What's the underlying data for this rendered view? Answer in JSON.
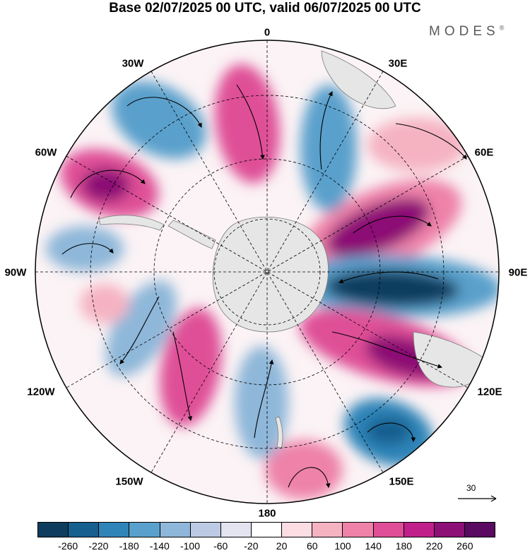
{
  "header": {
    "title": "Base 02/07/2025 00 UTC, valid 06/07/2025 00 UTC",
    "brand": "MODES",
    "brand_mark": "®"
  },
  "map": {
    "projection": "south-polar-stereographic",
    "longitude_labels": {
      "lon_0": "0",
      "lon_30e": "30E",
      "lon_60e": "60E",
      "lon_90e": "90E",
      "lon_120e": "120E",
      "lon_150e": "150E",
      "lon_180": "180",
      "lon_150w": "150W",
      "lon_120w": "120W",
      "lon_90w": "90W",
      "lon_60w": "60W",
      "lon_30w": "30W"
    },
    "reference_vector_label": "30",
    "land_color": "#e6e6e6",
    "grid_style": "dashed"
  },
  "colorbar": {
    "colors": [
      "#0f3d5e",
      "#165f8f",
      "#2f84b8",
      "#5aa0cc",
      "#8eb7d9",
      "#bccae4",
      "#e4e4f1",
      "#ffffff",
      "#fbdde3",
      "#f5b3c2",
      "#ee82a9",
      "#df4f97",
      "#c0208a",
      "#8c1075",
      "#5a0a61"
    ],
    "tick_labels": [
      "-260",
      "-220",
      "-180",
      "-140",
      "-100",
      "-60",
      "-20",
      "20",
      "60",
      "100",
      "140",
      "180",
      "220",
      "260"
    ],
    "colors_meaning": "diverging blue (negative) to magenta (positive)"
  }
}
